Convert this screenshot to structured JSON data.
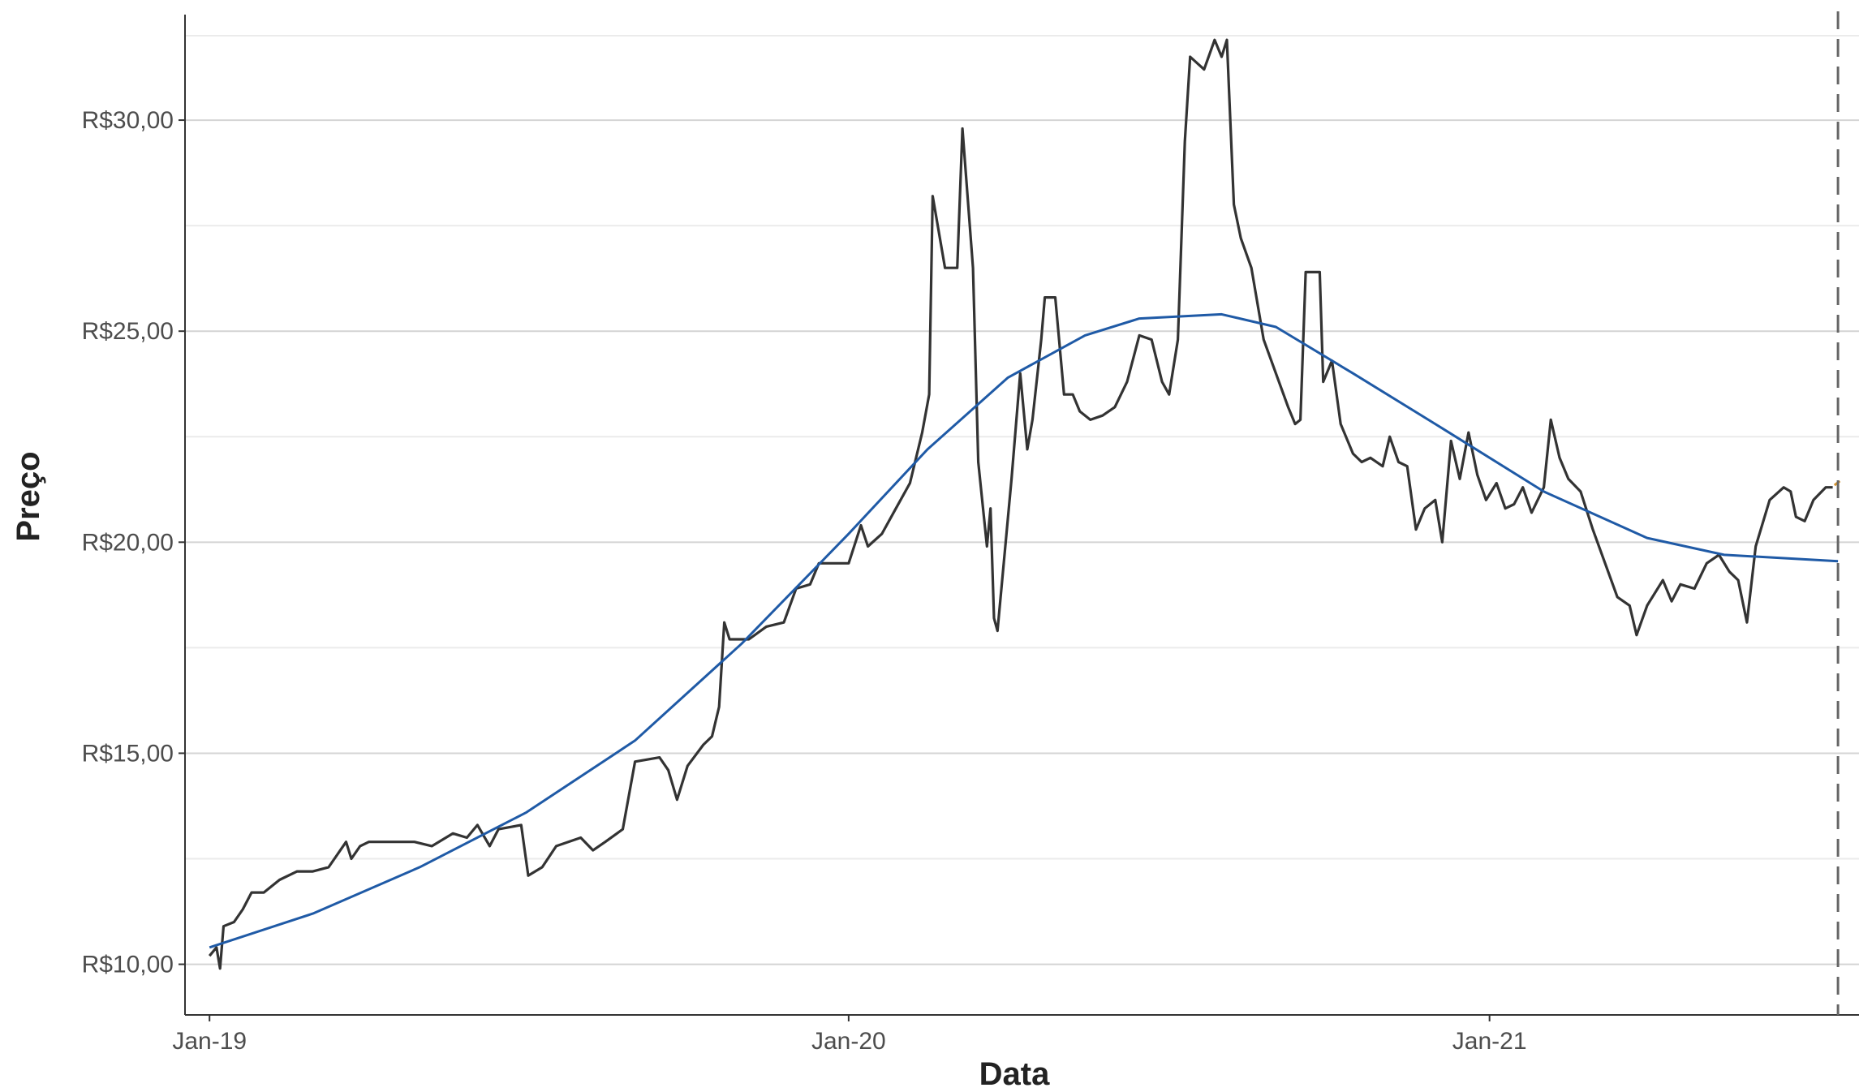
{
  "chart_data": {
    "type": "line",
    "title": "",
    "xlabel": "Data",
    "ylabel": "Preço",
    "xlim": [
      "2018-12-18",
      "2021-07-31"
    ],
    "ylim": [
      8.8,
      32.5
    ],
    "grid": true,
    "legend": "none",
    "x_ticks": [
      {
        "date": "2019-01-01",
        "label": "Jan-19"
      },
      {
        "date": "2020-01-01",
        "label": "Jan-20"
      },
      {
        "date": "2021-01-01",
        "label": "Jan-21"
      }
    ],
    "y_ticks": [
      {
        "value": 10,
        "label": "R$10,00"
      },
      {
        "value": 15,
        "label": "R$15,00"
      },
      {
        "value": 20,
        "label": "R$20,00"
      },
      {
        "value": 25,
        "label": "R$25,00"
      },
      {
        "value": 30,
        "label": "R$30,00"
      }
    ],
    "y_minor_ticks": [
      12.5,
      17.5,
      22.5,
      27.5,
      32.0
    ],
    "vline": {
      "date": "2021-07-19",
      "style": "dashed",
      "color": "#666666"
    },
    "series": [
      {
        "role": "price",
        "color": "#333333",
        "points": [
          [
            "2019-01-01",
            10.2
          ],
          [
            "2019-01-05",
            10.4
          ],
          [
            "2019-01-07",
            9.9
          ],
          [
            "2019-01-09",
            10.9
          ],
          [
            "2019-01-15",
            11.0
          ],
          [
            "2019-01-20",
            11.3
          ],
          [
            "2019-01-25",
            11.7
          ],
          [
            "2019-02-01",
            11.7
          ],
          [
            "2019-02-10",
            12.0
          ],
          [
            "2019-02-20",
            12.2
          ],
          [
            "2019-03-01",
            12.2
          ],
          [
            "2019-03-10",
            12.3
          ],
          [
            "2019-03-20",
            12.9
          ],
          [
            "2019-03-23",
            12.5
          ],
          [
            "2019-03-28",
            12.8
          ],
          [
            "2019-04-02",
            12.9
          ],
          [
            "2019-04-15",
            12.9
          ],
          [
            "2019-04-28",
            12.9
          ],
          [
            "2019-05-08",
            12.8
          ],
          [
            "2019-05-20",
            13.1
          ],
          [
            "2019-05-28",
            13.0
          ],
          [
            "2019-06-03",
            13.3
          ],
          [
            "2019-06-10",
            12.8
          ],
          [
            "2019-06-15",
            13.2
          ],
          [
            "2019-06-28",
            13.3
          ],
          [
            "2019-07-02",
            12.1
          ],
          [
            "2019-07-10",
            12.3
          ],
          [
            "2019-07-18",
            12.8
          ],
          [
            "2019-08-01",
            13.0
          ],
          [
            "2019-08-08",
            12.7
          ],
          [
            "2019-08-15",
            12.9
          ],
          [
            "2019-08-25",
            13.2
          ],
          [
            "2019-09-01",
            14.8
          ],
          [
            "2019-09-15",
            14.9
          ],
          [
            "2019-09-20",
            14.6
          ],
          [
            "2019-09-25",
            13.9
          ],
          [
            "2019-10-01",
            14.7
          ],
          [
            "2019-10-10",
            15.2
          ],
          [
            "2019-10-15",
            15.4
          ],
          [
            "2019-10-19",
            16.1
          ],
          [
            "2019-10-22",
            18.1
          ],
          [
            "2019-10-25",
            17.7
          ],
          [
            "2019-11-05",
            17.7
          ],
          [
            "2019-11-15",
            18.0
          ],
          [
            "2019-11-25",
            18.1
          ],
          [
            "2019-12-02",
            18.9
          ],
          [
            "2019-12-10",
            19.0
          ],
          [
            "2019-12-15",
            19.5
          ],
          [
            "2019-12-25",
            19.5
          ],
          [
            "2020-01-01",
            19.5
          ],
          [
            "2020-01-08",
            20.4
          ],
          [
            "2020-01-12",
            19.9
          ],
          [
            "2020-01-20",
            20.2
          ],
          [
            "2020-01-28",
            20.8
          ],
          [
            "2020-02-05",
            21.4
          ],
          [
            "2020-02-12",
            22.6
          ],
          [
            "2020-02-16",
            23.5
          ],
          [
            "2020-02-18",
            28.2
          ],
          [
            "2020-02-25",
            26.5
          ],
          [
            "2020-03-03",
            26.5
          ],
          [
            "2020-03-06",
            29.8
          ],
          [
            "2020-03-12",
            26.5
          ],
          [
            "2020-03-15",
            21.9
          ],
          [
            "2020-03-20",
            19.9
          ],
          [
            "2020-03-22",
            20.8
          ],
          [
            "2020-03-24",
            18.2
          ],
          [
            "2020-03-26",
            17.9
          ],
          [
            "2020-04-03",
            21.5
          ],
          [
            "2020-04-08",
            24.0
          ],
          [
            "2020-04-12",
            22.2
          ],
          [
            "2020-04-15",
            22.9
          ],
          [
            "2020-04-20",
            24.8
          ],
          [
            "2020-04-22",
            25.8
          ],
          [
            "2020-04-28",
            25.8
          ],
          [
            "2020-05-03",
            23.5
          ],
          [
            "2020-05-08",
            23.5
          ],
          [
            "2020-05-12",
            23.1
          ],
          [
            "2020-05-18",
            22.9
          ],
          [
            "2020-05-25",
            23.0
          ],
          [
            "2020-06-01",
            23.2
          ],
          [
            "2020-06-08",
            23.8
          ],
          [
            "2020-06-15",
            24.9
          ],
          [
            "2020-06-22",
            24.8
          ],
          [
            "2020-06-28",
            23.8
          ],
          [
            "2020-07-02",
            23.5
          ],
          [
            "2020-07-07",
            24.8
          ],
          [
            "2020-07-11",
            29.5
          ],
          [
            "2020-07-14",
            31.5
          ],
          [
            "2020-07-22",
            31.2
          ],
          [
            "2020-07-28",
            31.9
          ],
          [
            "2020-08-01",
            31.5
          ],
          [
            "2020-08-04",
            31.9
          ],
          [
            "2020-08-08",
            28.0
          ],
          [
            "2020-08-12",
            27.2
          ],
          [
            "2020-08-18",
            26.5
          ],
          [
            "2020-08-25",
            24.8
          ],
          [
            "2020-09-01",
            24.0
          ],
          [
            "2020-09-08",
            23.2
          ],
          [
            "2020-09-12",
            22.8
          ],
          [
            "2020-09-15",
            22.9
          ],
          [
            "2020-09-18",
            26.4
          ],
          [
            "2020-09-26",
            26.4
          ],
          [
            "2020-09-28",
            23.8
          ],
          [
            "2020-10-03",
            24.3
          ],
          [
            "2020-10-08",
            22.8
          ],
          [
            "2020-10-15",
            22.1
          ],
          [
            "2020-10-20",
            21.9
          ],
          [
            "2020-10-25",
            22.0
          ],
          [
            "2020-11-01",
            21.8
          ],
          [
            "2020-11-05",
            22.5
          ],
          [
            "2020-11-10",
            21.9
          ],
          [
            "2020-11-15",
            21.8
          ],
          [
            "2020-11-20",
            20.3
          ],
          [
            "2020-11-25",
            20.8
          ],
          [
            "2020-12-01",
            21.0
          ],
          [
            "2020-12-05",
            20.0
          ],
          [
            "2020-12-10",
            22.4
          ],
          [
            "2020-12-15",
            21.5
          ],
          [
            "2020-12-20",
            22.6
          ],
          [
            "2020-12-25",
            21.6
          ],
          [
            "2020-12-30",
            21.0
          ],
          [
            "2021-01-05",
            21.4
          ],
          [
            "2021-01-10",
            20.8
          ],
          [
            "2021-01-15",
            20.9
          ],
          [
            "2021-01-20",
            21.3
          ],
          [
            "2021-01-25",
            20.7
          ],
          [
            "2021-02-01",
            21.3
          ],
          [
            "2021-02-05",
            22.9
          ],
          [
            "2021-02-10",
            22.0
          ],
          [
            "2021-02-15",
            21.5
          ],
          [
            "2021-02-22",
            21.2
          ],
          [
            "2021-03-01",
            20.3
          ],
          [
            "2021-03-08",
            19.5
          ],
          [
            "2021-03-15",
            18.7
          ],
          [
            "2021-03-22",
            18.5
          ],
          [
            "2021-03-26",
            17.8
          ],
          [
            "2021-04-01",
            18.5
          ],
          [
            "2021-04-10",
            19.1
          ],
          [
            "2021-04-15",
            18.6
          ],
          [
            "2021-04-20",
            19.0
          ],
          [
            "2021-04-28",
            18.9
          ],
          [
            "2021-05-05",
            19.5
          ],
          [
            "2021-05-12",
            19.7
          ],
          [
            "2021-05-18",
            19.3
          ],
          [
            "2021-05-23",
            19.1
          ],
          [
            "2021-05-28",
            18.1
          ],
          [
            "2021-06-02",
            19.9
          ],
          [
            "2021-06-10",
            21.0
          ],
          [
            "2021-06-18",
            21.3
          ],
          [
            "2021-06-22",
            21.2
          ],
          [
            "2021-06-25",
            20.6
          ],
          [
            "2021-06-30",
            20.5
          ],
          [
            "2021-07-05",
            21.0
          ],
          [
            "2021-07-12",
            21.3
          ],
          [
            "2021-07-16",
            21.3
          ]
        ]
      },
      {
        "role": "trend",
        "color": "#1f5aa6",
        "points": [
          [
            "2019-01-01",
            10.4
          ],
          [
            "2019-03-01",
            11.2
          ],
          [
            "2019-05-01",
            12.3
          ],
          [
            "2019-07-01",
            13.6
          ],
          [
            "2019-09-01",
            15.3
          ],
          [
            "2019-11-01",
            17.6
          ],
          [
            "2020-01-01",
            20.2
          ],
          [
            "2020-02-15",
            22.2
          ],
          [
            "2020-04-01",
            23.9
          ],
          [
            "2020-05-15",
            24.9
          ],
          [
            "2020-06-15",
            25.3
          ],
          [
            "2020-08-01",
            25.4
          ],
          [
            "2020-09-01",
            25.1
          ],
          [
            "2020-10-15",
            24.0
          ],
          [
            "2020-12-01",
            22.8
          ],
          [
            "2021-02-01",
            21.2
          ],
          [
            "2021-04-01",
            20.1
          ],
          [
            "2021-05-15",
            19.7
          ],
          [
            "2021-07-19",
            19.55
          ]
        ]
      },
      {
        "role": "forecast",
        "color": "#d4932f",
        "points": [
          [
            "2021-07-17",
            21.35
          ],
          [
            "2021-07-20",
            21.45
          ]
        ]
      }
    ]
  }
}
